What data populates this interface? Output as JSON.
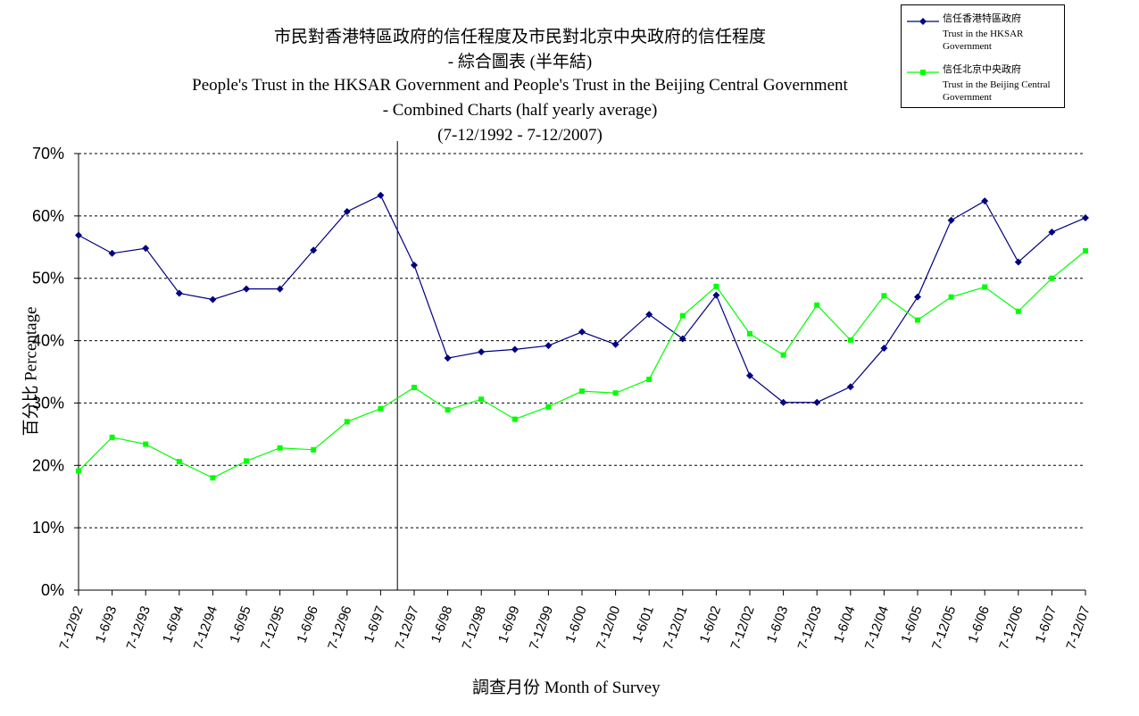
{
  "title": {
    "line1": "市民對香港特區政府的信任程度及市民對北京中央政府的信任程度",
    "line2": "- 綜合圖表 (半年結)",
    "line3": "People's Trust in the HKSAR Government and People's Trust in the Beijing Central Government",
    "line4": "- Combined Charts (half yearly average)",
    "line5": "(7-12/1992 - 7-12/2007)"
  },
  "legend": {
    "items": [
      {
        "label_zh": "信任香港特區政府",
        "label_en": "Trust in the HKSAR\nGovernment"
      },
      {
        "label_zh": "信任北京中央政府",
        "label_en": "Trust in the Beijing Central\nGovernment"
      }
    ]
  },
  "chart_data": {
    "type": "line",
    "title": "市民對香港特區政府的信任程度及市民對北京中央政府的信任程度 - 綜合圖表 (半年結) People's Trust in the HKSAR Government and People's Trust in the Beijing Central Government - Combined Charts (half yearly average) (7-12/1992 - 7-12/2007)",
    "xlabel": "調查月份 Month of Survey",
    "ylabel": "百分比 Percentage",
    "ylim": [
      0,
      70
    ],
    "yticks": [
      "0%",
      "10%",
      "20%",
      "30%",
      "40%",
      "50%",
      "60%",
      "70%"
    ],
    "categories": [
      "7-12/92",
      "1-6/93",
      "7-12/93",
      "1-6/94",
      "7-12/94",
      "1-6/95",
      "7-12/95",
      "1-6/96",
      "7-12/96",
      "1-6/97",
      "7-12/97",
      "1-6/98",
      "7-12/98",
      "1-6/99",
      "7-12/99",
      "1-6/00",
      "7-12/00",
      "1-6/01",
      "7-12/01",
      "1-6/02",
      "7-12/02",
      "1-6/03",
      "7-12/03",
      "1-6/04",
      "7-12/04",
      "1-6/05",
      "7-12/05",
      "1-6/06",
      "7-12/06",
      "1-6/07",
      "7-12/07"
    ],
    "series": [
      {
        "name": "信任香港特區政府 Trust in the HKSAR Government",
        "color": "#000080",
        "marker": "diamond",
        "values": [
          56.9,
          54.0,
          54.8,
          47.6,
          46.6,
          48.3,
          48.3,
          54.5,
          60.7,
          63.3,
          52.1,
          37.2,
          38.2,
          38.6,
          39.2,
          41.4,
          39.4,
          44.2,
          40.3,
          47.3,
          34.4,
          30.1,
          30.1,
          32.6,
          38.8,
          47.0,
          59.3,
          62.4,
          52.6,
          57.4,
          59.7
        ]
      },
      {
        "name": "信任北京中央政府 Trust in the Beijing Central Government",
        "color": "#00FF00",
        "marker": "square",
        "values": [
          19.1,
          24.5,
          23.4,
          20.6,
          18.0,
          20.7,
          22.8,
          22.5,
          27.0,
          29.1,
          32.5,
          28.9,
          30.6,
          27.4,
          29.4,
          31.9,
          31.6,
          33.8,
          44.0,
          48.7,
          41.1,
          37.7,
          45.7,
          40.1,
          47.2,
          43.3,
          47.0,
          48.6,
          44.7,
          50.0,
          54.4
        ]
      }
    ],
    "reference_line": "7-12/97",
    "grid": "horizontal dashed"
  }
}
